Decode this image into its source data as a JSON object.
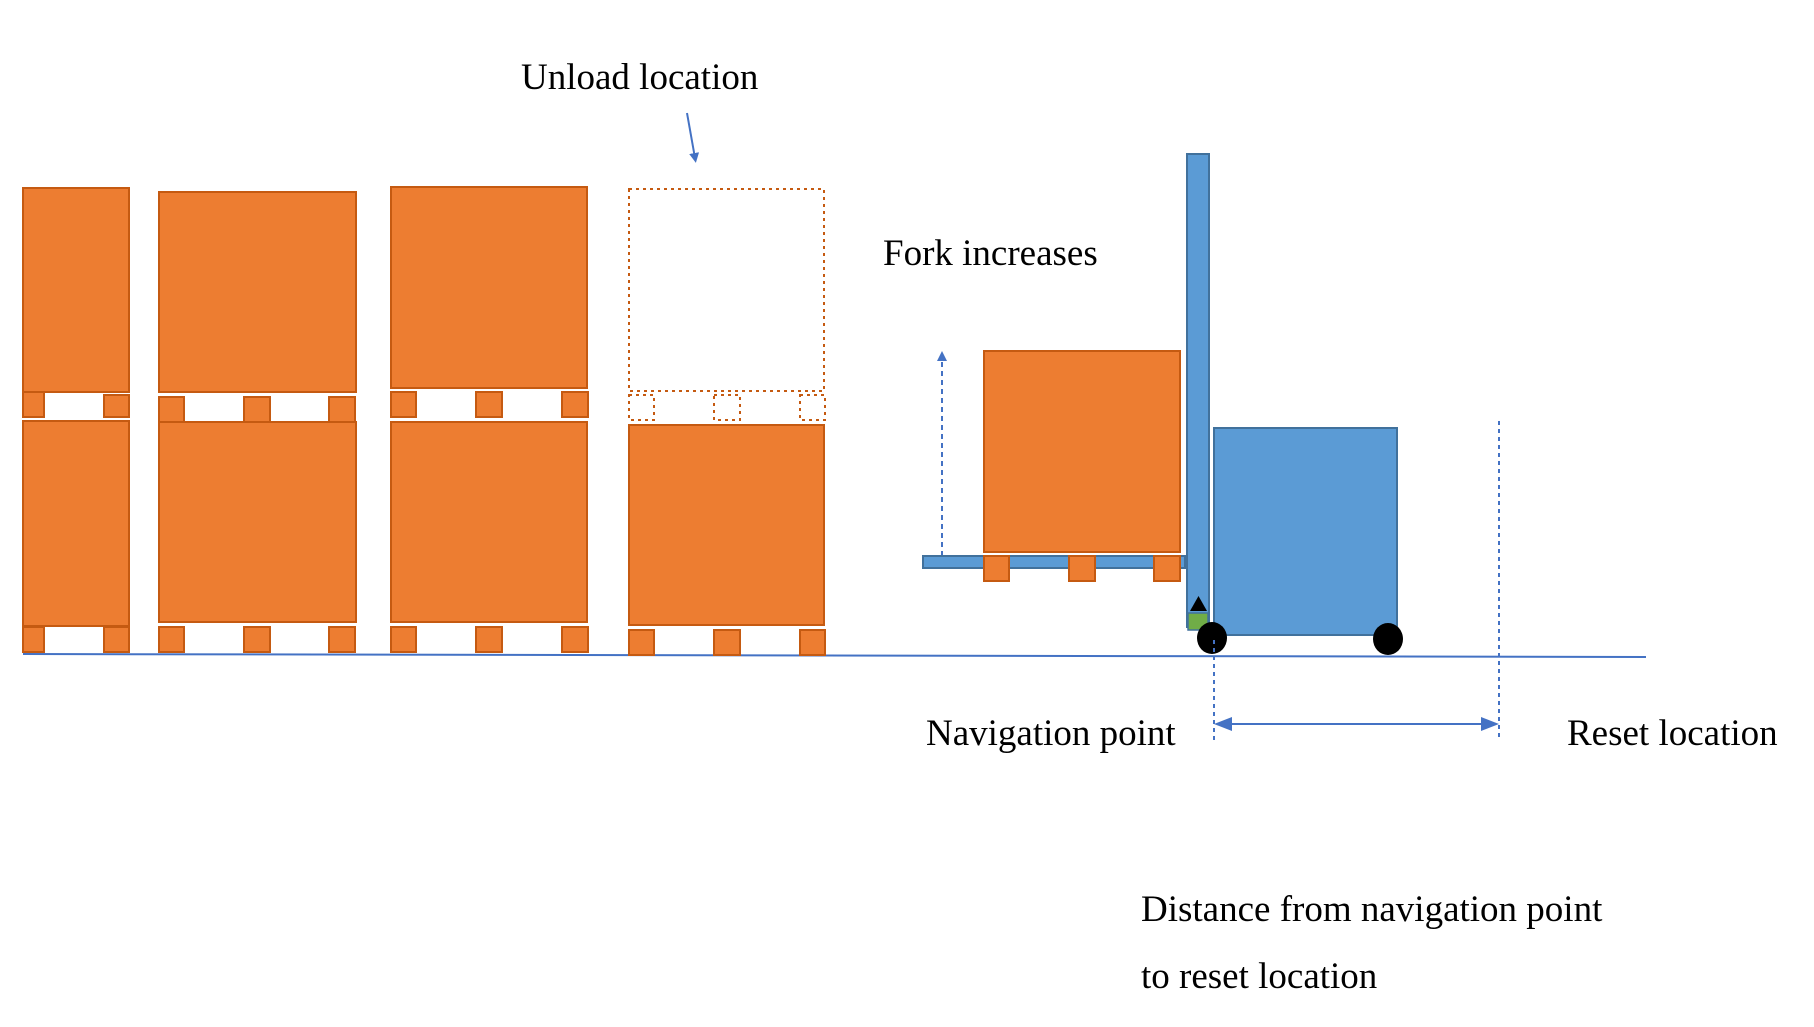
{
  "labels": {
    "unload_location": "Unload location",
    "fork_increases": "Fork increases",
    "navigation_point": "Navigation point",
    "reset_location": "Reset location",
    "distance_line1": "Distance from navigation point",
    "distance_line2": "to reset location"
  },
  "colors": {
    "pallet_orange": "#ED7D31",
    "pallet_border": "#C55A11",
    "forklift_blue": "#5B9BD5",
    "forklift_border": "#41719C",
    "line_blue": "#4472C4",
    "wheel_black": "#000000",
    "sensor_green": "#70AD47"
  }
}
